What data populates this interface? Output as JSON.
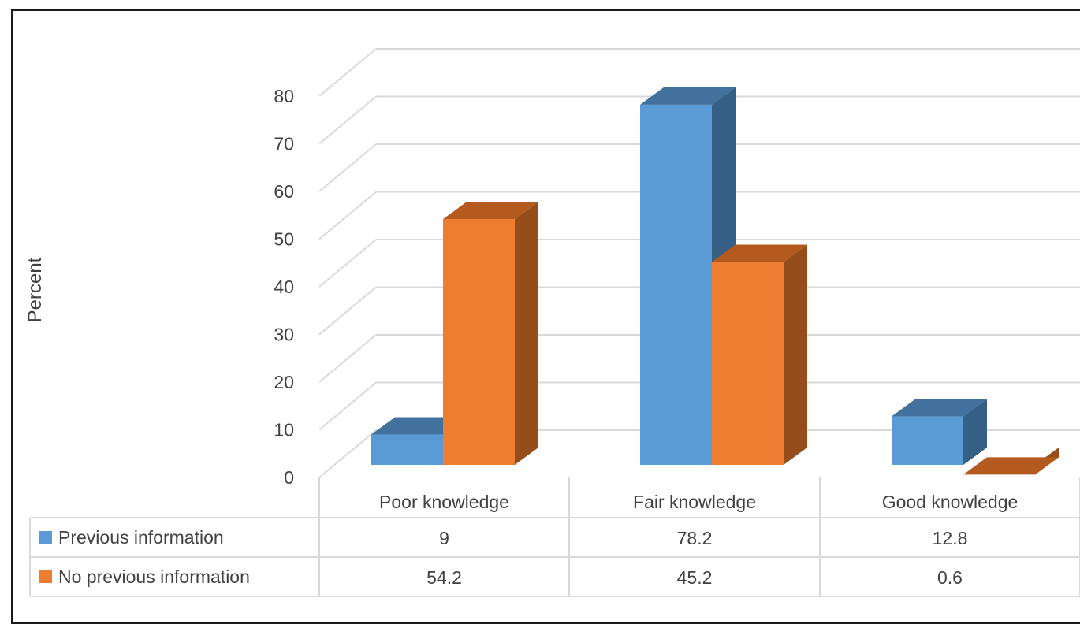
{
  "chart_data": {
    "type": "bar",
    "style": "3d-clustered-column-with-data-table",
    "ylabel": "Percent",
    "ylim": [
      0,
      80
    ],
    "yticks": [
      0,
      10,
      20,
      30,
      40,
      50,
      60,
      70,
      80
    ],
    "grid": true,
    "categories": [
      "Poor knowledge",
      "Fair knowledge",
      "Good knowledge"
    ],
    "series": [
      {
        "name": "Previous information",
        "values": [
          9,
          78.2,
          12.8
        ],
        "labels": [
          "9",
          "78.2",
          "12.8"
        ],
        "color": "#5b9bd5",
        "side_color": "#365f85",
        "top_color": "#41719c"
      },
      {
        "name": "No previous information",
        "values": [
          54.2,
          45.2,
          0.6
        ],
        "labels": [
          "54.2",
          "45.2",
          "0.6"
        ],
        "color": "#ed7d31",
        "side_color": "#954e1b",
        "top_color": "#b55a1f"
      }
    ]
  }
}
